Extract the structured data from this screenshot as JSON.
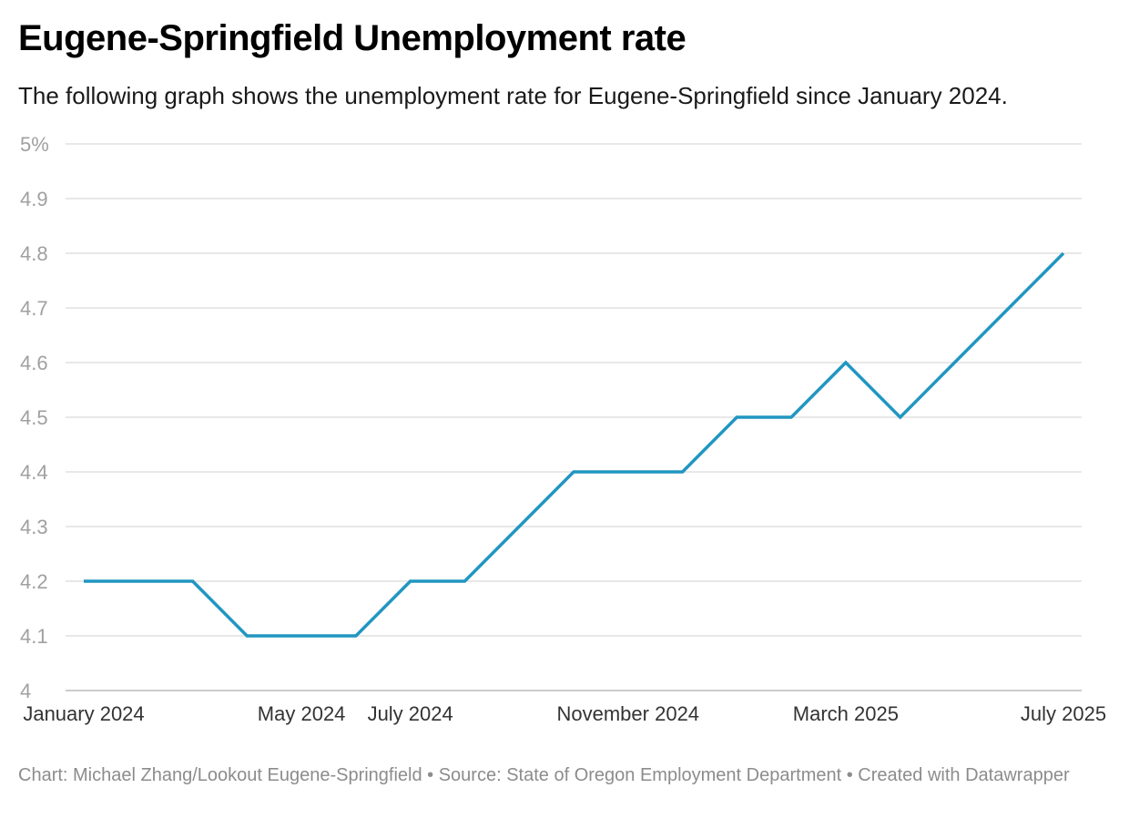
{
  "header": {
    "title": "Eugene-Springfield Unemployment rate",
    "subtitle": "The following graph shows the unemployment rate for Eugene-Springfield since January 2024."
  },
  "footer": {
    "text": "Chart: Michael Zhang/Lookout Eugene-Springfield • Source: State of Oregon Employment Department • Created with Datawrapper"
  },
  "colors": {
    "line": "#2196c1",
    "grid": "#e0e0e0",
    "baseline": "#cccccc"
  },
  "chart_data": {
    "type": "line",
    "title": "Eugene-Springfield Unemployment rate",
    "subtitle": "The following graph shows the unemployment rate for Eugene-Springfield since January 2024.",
    "xlabel": "",
    "ylabel": "",
    "grid": true,
    "ylim": [
      4,
      5
    ],
    "y_ticks": [
      {
        "value": 4.0,
        "label": "4"
      },
      {
        "value": 4.1,
        "label": "4.1"
      },
      {
        "value": 4.2,
        "label": "4.2"
      },
      {
        "value": 4.3,
        "label": "4.3"
      },
      {
        "value": 4.4,
        "label": "4.4"
      },
      {
        "value": 4.5,
        "label": "4.5"
      },
      {
        "value": 4.6,
        "label": "4.6"
      },
      {
        "value": 4.7,
        "label": "4.7"
      },
      {
        "value": 4.8,
        "label": "4.8"
      },
      {
        "value": 4.9,
        "label": "4.9"
      },
      {
        "value": 5.0,
        "label": "5%"
      }
    ],
    "x_ticks": [
      {
        "x": "2024-01",
        "label": "January 2024"
      },
      {
        "x": "2024-05",
        "label": "May 2024"
      },
      {
        "x": "2024-07",
        "label": "July 2024"
      },
      {
        "x": "2024-11",
        "label": "November 2024"
      },
      {
        "x": "2025-03",
        "label": "March 2025"
      },
      {
        "x": "2025-07",
        "label": "July 2025"
      }
    ],
    "x": [
      "2024-01",
      "2024-02",
      "2024-03",
      "2024-04",
      "2024-05",
      "2024-06",
      "2024-07",
      "2024-08",
      "2024-09",
      "2024-10",
      "2024-11",
      "2024-12",
      "2025-01",
      "2025-02",
      "2025-03",
      "2025-04",
      "2025-05",
      "2025-06",
      "2025-07"
    ],
    "series": [
      {
        "values": [
          4.2,
          4.2,
          4.2,
          4.1,
          4.1,
          4.1,
          4.2,
          4.2,
          4.3,
          4.4,
          4.4,
          4.4,
          4.5,
          4.5,
          4.6,
          4.5,
          4.6,
          4.7,
          4.8
        ]
      }
    ]
  }
}
